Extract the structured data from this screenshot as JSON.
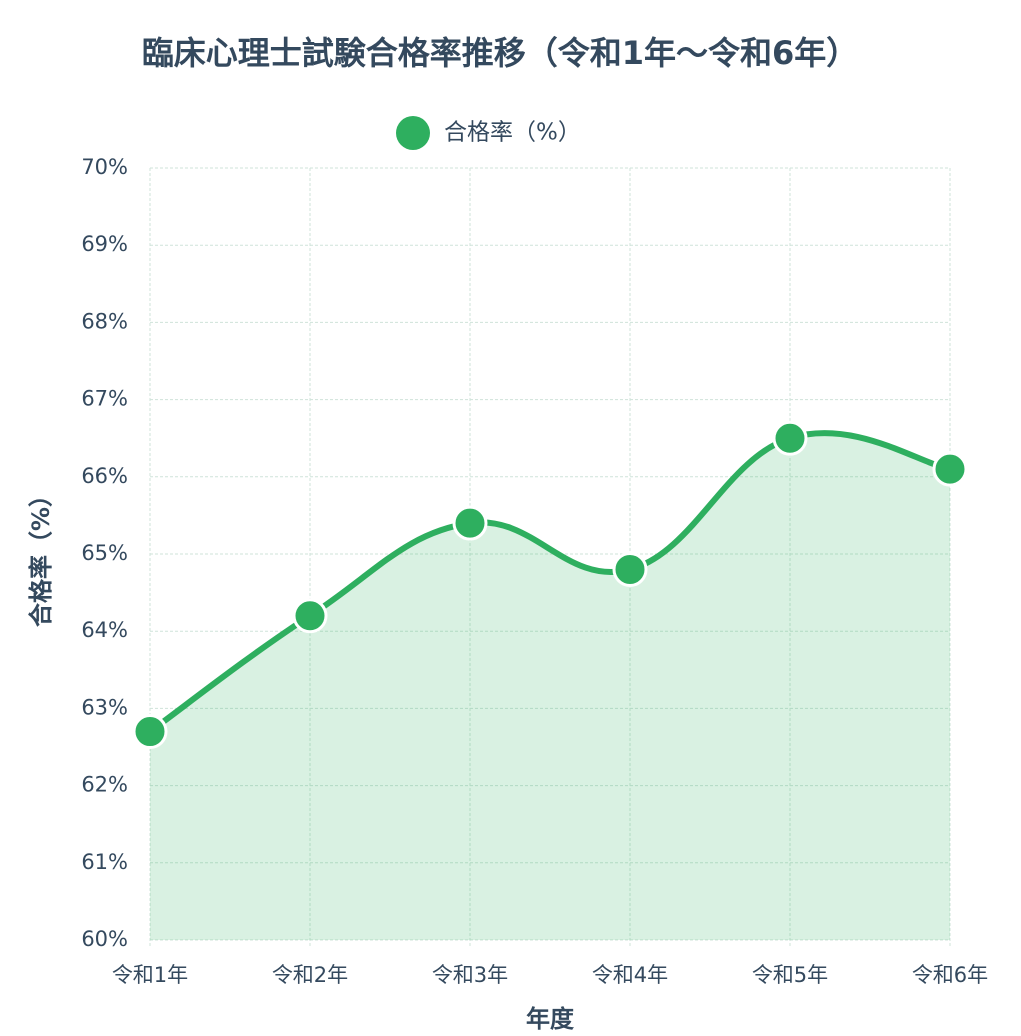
{
  "chart_data": {
    "type": "line",
    "title": "臨床心理士試験合格率推移（令和1年〜令和6年）",
    "categories": [
      "令和1年",
      "令和2年",
      "令和3年",
      "令和4年",
      "令和5年",
      "令和6年"
    ],
    "series": [
      {
        "name": "合格率（%）",
        "color": "#2eaf5f",
        "values": [
          62.7,
          64.2,
          65.4,
          64.8,
          66.5,
          66.1
        ]
      }
    ],
    "x_label": "年度",
    "y_label": "合格率（%）",
    "ylim": [
      60,
      70
    ],
    "yticks": [
      {
        "value": 60,
        "label": "60%"
      },
      {
        "value": 61,
        "label": "61%"
      },
      {
        "value": 62,
        "label": "62%"
      },
      {
        "value": 63,
        "label": "63%"
      },
      {
        "value": 64,
        "label": "64%"
      },
      {
        "value": 65,
        "label": "65%"
      },
      {
        "value": 66,
        "label": "66%"
      },
      {
        "value": 67,
        "label": "67%"
      },
      {
        "value": 68,
        "label": "68%"
      },
      {
        "value": 69,
        "label": "69%"
      },
      {
        "value": 70,
        "label": "70%"
      }
    ],
    "grid": true,
    "legend": "top"
  }
}
